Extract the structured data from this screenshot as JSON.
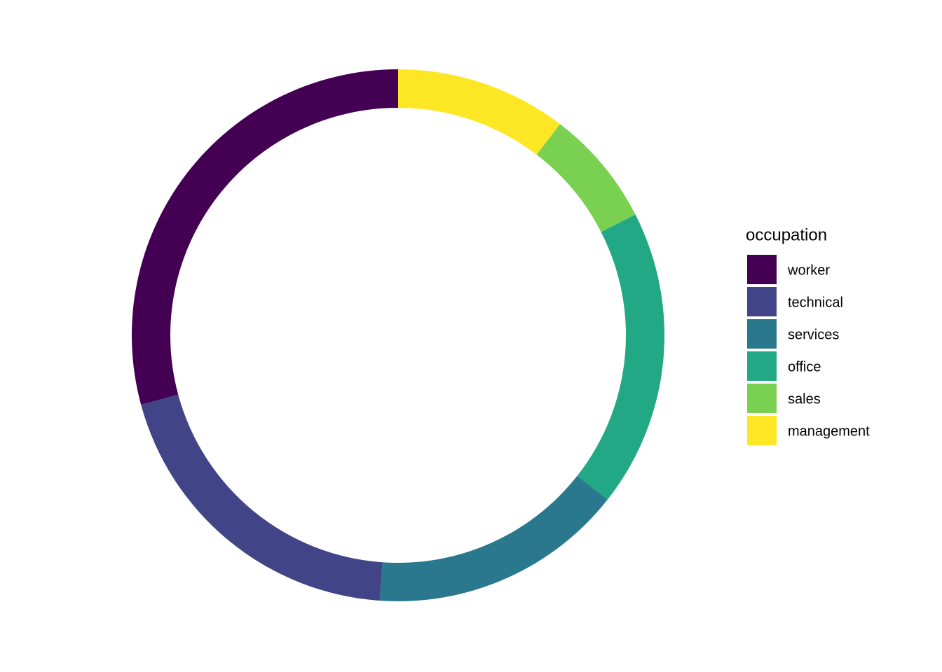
{
  "chart_data": {
    "type": "donut",
    "legend_title": "occupation",
    "legend_position": "right",
    "categories": [
      "worker",
      "technical",
      "services",
      "office",
      "sales",
      "management"
    ],
    "values": [
      29.2,
      19.7,
      15.5,
      18.1,
      7.1,
      10.4
    ],
    "colors": [
      "#440154",
      "#414487",
      "#2a788e",
      "#22a884",
      "#7ad151",
      "#fde725"
    ]
  }
}
